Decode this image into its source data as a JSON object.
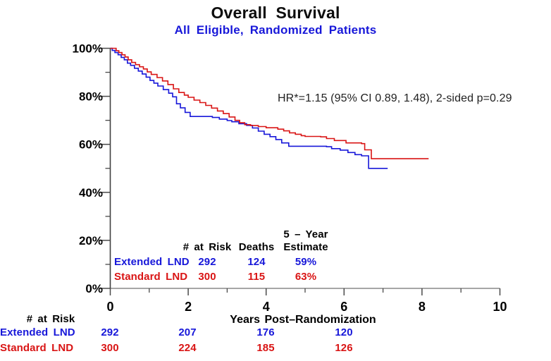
{
  "title": "Overall Survival",
  "subtitle": "All Eligible, Randomized Patients",
  "annotation": "HR*=1.15 (95% CI 0.89, 1.48), 2-sided p=0.29",
  "colors": {
    "extended_blue": "#1717d9",
    "standard_red": "#d91414",
    "x_axis_line": "#999999",
    "y_axis_line": "#3f3f3f",
    "tick": "#4a4a4a",
    "label_text": "#000000"
  },
  "chart_data": {
    "type": "line",
    "subtype": "kaplan-meier-step",
    "title": "Overall Survival",
    "subtitle": "All Eligible, Randomized Patients",
    "annotation": "HR*=1.15 (95% CI 0.89, 1.48), 2-sided p=0.29",
    "xlabel": "Years Post–Randomization",
    "ylabel": "",
    "xlim": [
      0,
      10
    ],
    "ylim": [
      0,
      100
    ],
    "grid": false,
    "legend_position": "in-plot-table",
    "x_ticks": [
      0,
      2,
      4,
      6,
      8,
      10
    ],
    "x_minor_ticks": [
      1,
      3,
      5,
      7,
      9
    ],
    "y_ticks": [
      {
        "value": 100,
        "label": "100%"
      },
      {
        "value": 80,
        "label": "80%"
      },
      {
        "value": 60,
        "label": "60%"
      },
      {
        "value": 40,
        "label": "40%"
      },
      {
        "value": 20,
        "label": "20%"
      },
      {
        "value": 0,
        "label": "0%"
      }
    ],
    "y_minor_ticks": [
      90,
      70,
      50,
      30,
      10
    ],
    "series": [
      {
        "name": "Extended LND",
        "color_key": "extended_blue",
        "points": [
          [
            0,
            100
          ],
          [
            0.05,
            99.1
          ],
          [
            0.12,
            98.2
          ],
          [
            0.2,
            97.3
          ],
          [
            0.28,
            96.2
          ],
          [
            0.36,
            95.2
          ],
          [
            0.44,
            93.8
          ],
          [
            0.52,
            92.9
          ],
          [
            0.62,
            91.7
          ],
          [
            0.72,
            90.5
          ],
          [
            0.82,
            89.3
          ],
          [
            0.92,
            88
          ],
          [
            1.02,
            86.6
          ],
          [
            1.12,
            85.5
          ],
          [
            1.22,
            84.3
          ],
          [
            1.36,
            82.8
          ],
          [
            1.5,
            81.3
          ],
          [
            1.6,
            79.8
          ],
          [
            1.7,
            76.9
          ],
          [
            1.8,
            75.2
          ],
          [
            1.92,
            73.3
          ],
          [
            2.05,
            71.6
          ],
          [
            2.62,
            71.2
          ],
          [
            2.8,
            70.5
          ],
          [
            3.0,
            69.9
          ],
          [
            3.12,
            69.4
          ],
          [
            3.3,
            68.6
          ],
          [
            3.5,
            67.9
          ],
          [
            3.65,
            66.8
          ],
          [
            3.8,
            65.5
          ],
          [
            3.95,
            64.2
          ],
          [
            4.1,
            63.2
          ],
          [
            4.25,
            62
          ],
          [
            4.4,
            60.6
          ],
          [
            4.58,
            59.2
          ],
          [
            5.55,
            59
          ],
          [
            5.68,
            58.2
          ],
          [
            5.9,
            57.6
          ],
          [
            6.1,
            56.6
          ],
          [
            6.28,
            55.7
          ],
          [
            6.45,
            55.2
          ],
          [
            6.63,
            50
          ],
          [
            7.12,
            50
          ]
        ]
      },
      {
        "name": "Standard LND",
        "color_key": "standard_red",
        "points": [
          [
            0,
            100
          ],
          [
            0.15,
            99
          ],
          [
            0.22,
            98.2
          ],
          [
            0.3,
            97.3
          ],
          [
            0.38,
            96.4
          ],
          [
            0.46,
            95.2
          ],
          [
            0.55,
            94.1
          ],
          [
            0.65,
            93.2
          ],
          [
            0.75,
            92.3
          ],
          [
            0.85,
            91.4
          ],
          [
            0.95,
            90.2
          ],
          [
            1.05,
            89.1
          ],
          [
            1.2,
            87.8
          ],
          [
            1.34,
            86.4
          ],
          [
            1.48,
            84.9
          ],
          [
            1.62,
            83.1
          ],
          [
            1.76,
            81.6
          ],
          [
            1.9,
            80.5
          ],
          [
            2.0,
            79.6
          ],
          [
            2.15,
            78.4
          ],
          [
            2.3,
            77.4
          ],
          [
            2.45,
            76.2
          ],
          [
            2.6,
            75.1
          ],
          [
            2.75,
            73.9
          ],
          [
            2.9,
            72.8
          ],
          [
            3.05,
            71.4
          ],
          [
            3.2,
            70
          ],
          [
            3.32,
            69
          ],
          [
            3.45,
            68.2
          ],
          [
            3.6,
            67.8
          ],
          [
            3.8,
            67.4
          ],
          [
            4.0,
            66.9
          ],
          [
            4.3,
            66.3
          ],
          [
            4.45,
            65.6
          ],
          [
            4.6,
            64.8
          ],
          [
            4.75,
            64.2
          ],
          [
            4.9,
            63.6
          ],
          [
            5.0,
            63.3
          ],
          [
            5.4,
            63.1
          ],
          [
            5.55,
            62.4
          ],
          [
            5.75,
            61.6
          ],
          [
            6.05,
            60.6
          ],
          [
            6.45,
            60.3
          ],
          [
            6.53,
            57.7
          ],
          [
            6.7,
            54
          ],
          [
            8.17,
            54
          ]
        ]
      }
    ]
  },
  "stats_table": {
    "col4_header_top": "5 – Year",
    "headers": [
      "# at Risk",
      "Deaths",
      "Estimate"
    ],
    "rows": [
      {
        "label": "Extended LND",
        "at_risk": "292",
        "deaths": "124",
        "estimate": "59%"
      },
      {
        "label": "Standard LND",
        "at_risk": "300",
        "deaths": "115",
        "estimate": "63%"
      }
    ]
  },
  "risk_table": {
    "title": "# at Risk",
    "times": [
      0,
      2,
      4,
      6
    ],
    "rows": [
      {
        "label": "Extended LND",
        "values": [
          "292",
          "207",
          "176",
          "120"
        ]
      },
      {
        "label": "Standard LND",
        "values": [
          "300",
          "224",
          "185",
          "126"
        ]
      }
    ]
  }
}
